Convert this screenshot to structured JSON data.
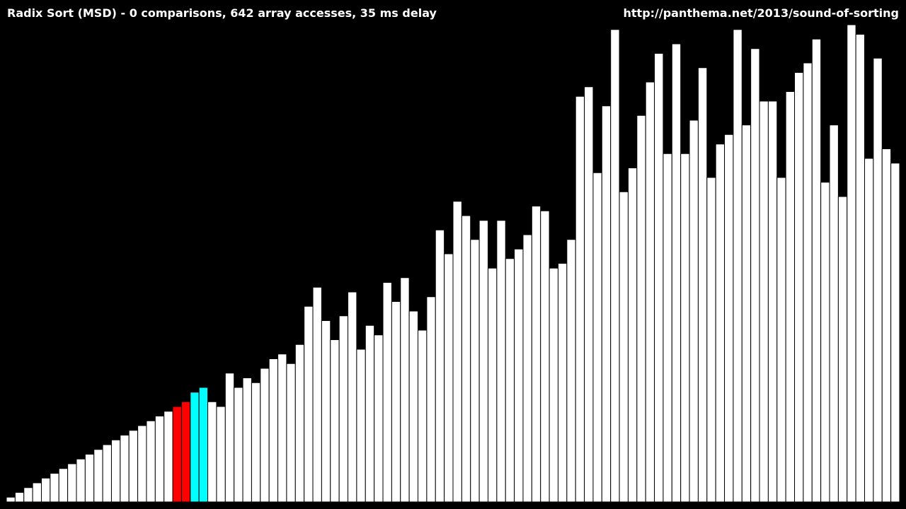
{
  "header": {
    "status_text": "Radix Sort (MSD) - 0 comparisons, 642 array accesses, 35 ms delay",
    "url_text": "http://panthema.net/2013/sound-of-sorting"
  },
  "colors": {
    "background": "#000000",
    "bar_default": "#ffffff",
    "bar_outline": "#000000",
    "bar_compare": "#ff0000",
    "bar_access": "#00ffff"
  },
  "chart_data": {
    "type": "bar",
    "ylim": [
      0,
      100
    ],
    "values": [
      1,
      2,
      3,
      4,
      5,
      6,
      7,
      8,
      9,
      10,
      11,
      12,
      13,
      14,
      15,
      16,
      17,
      18,
      19,
      20,
      21,
      23,
      24,
      21,
      20,
      27,
      24,
      26,
      25,
      28,
      30,
      31,
      29,
      33,
      41,
      45,
      38,
      34,
      39,
      44,
      32,
      37,
      35,
      46,
      42,
      47,
      40,
      36,
      43,
      57,
      52,
      63,
      60,
      55,
      59,
      49,
      59,
      51,
      53,
      56,
      62,
      61,
      49,
      50,
      55,
      85,
      87,
      69,
      83,
      99,
      65,
      70,
      81,
      88,
      94,
      73,
      96,
      73,
      80,
      91,
      68,
      75,
      77,
      99,
      79,
      95,
      84,
      84,
      68,
      86,
      90,
      92,
      97,
      67,
      79,
      64,
      100,
      98,
      72,
      93,
      74,
      71
    ],
    "highlights": [
      {
        "index": 19,
        "state": "compare"
      },
      {
        "index": 20,
        "state": "compare"
      },
      {
        "index": 21,
        "state": "access"
      },
      {
        "index": 22,
        "state": "access"
      }
    ]
  }
}
